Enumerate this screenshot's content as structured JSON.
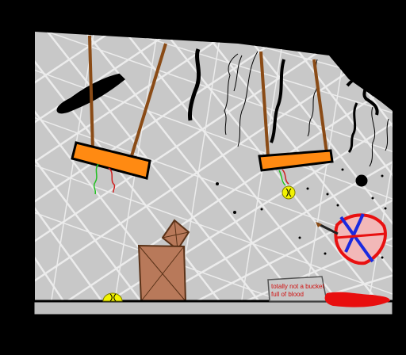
{
  "scene": {
    "sign_text": [
      "totally not a bucket",
      "full of blood"
    ],
    "colors": {
      "background": "#000000",
      "wall": "#c8c8c8",
      "wall_grid": "#ececec",
      "floor": "#c0c0c0",
      "rope": "#8a4b16",
      "swing_seat": "#ff8a12",
      "crate": "#b8795a",
      "blood": "#e80e0e",
      "ball": "#f2f200",
      "target_fill": "#f2b8b8",
      "target_ring": "#e81010",
      "target_cross": "#1a2ae0"
    }
  }
}
